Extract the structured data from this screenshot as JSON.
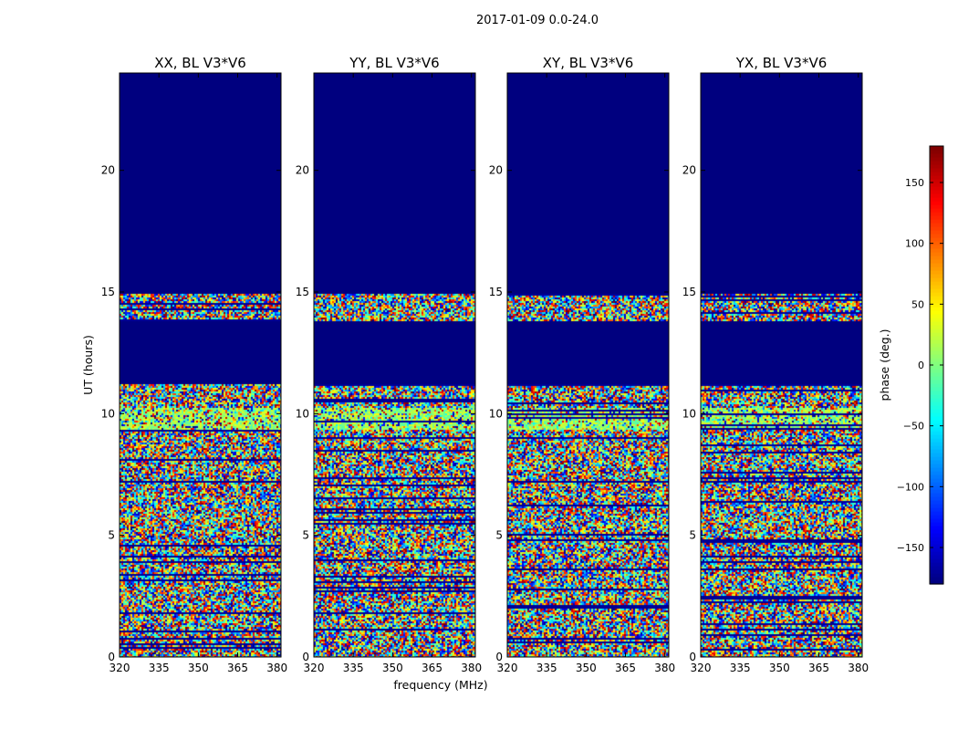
{
  "chart_data": {
    "type": "heatmap",
    "suptitle": "2017-01-09 0.0-24.0",
    "xlabel": "frequency (MHz)",
    "ylabel": "UT (hours)",
    "xlim": [
      320,
      381.5
    ],
    "ylim": [
      0,
      24
    ],
    "xticks": [
      320,
      335,
      350,
      365,
      380
    ],
    "yticks": [
      0,
      5,
      10,
      15,
      20
    ],
    "panels": [
      {
        "title": "XX, BL V3*V6"
      },
      {
        "title": "YY, BL V3*V6"
      },
      {
        "title": "XY, BL V3*V6"
      },
      {
        "title": "YX, BL V3*V6"
      }
    ],
    "colorbar": {
      "label": "phase (deg.)",
      "range": [
        -180,
        180
      ],
      "ticks": [
        -150,
        -100,
        -50,
        0,
        50,
        100,
        150
      ],
      "tick_labels": [
        "−150",
        "−100",
        "−50",
        "0",
        "50",
        "100",
        "150"
      ],
      "colormap": "jet"
    },
    "flagged_color": "#00007f",
    "data_blocks_hours": [
      [
        0,
        11.2
      ],
      [
        13.8,
        14.9
      ]
    ],
    "flagged_blocks_hours": [
      [
        11.2,
        13.8
      ],
      [
        14.9,
        24
      ]
    ],
    "coherent_band": {
      "hours": [
        9.4,
        10.3
      ],
      "phase_center_deg": 10
    },
    "noise_note": "phase values appear randomly distributed across -180..180 deg in data blocks"
  }
}
